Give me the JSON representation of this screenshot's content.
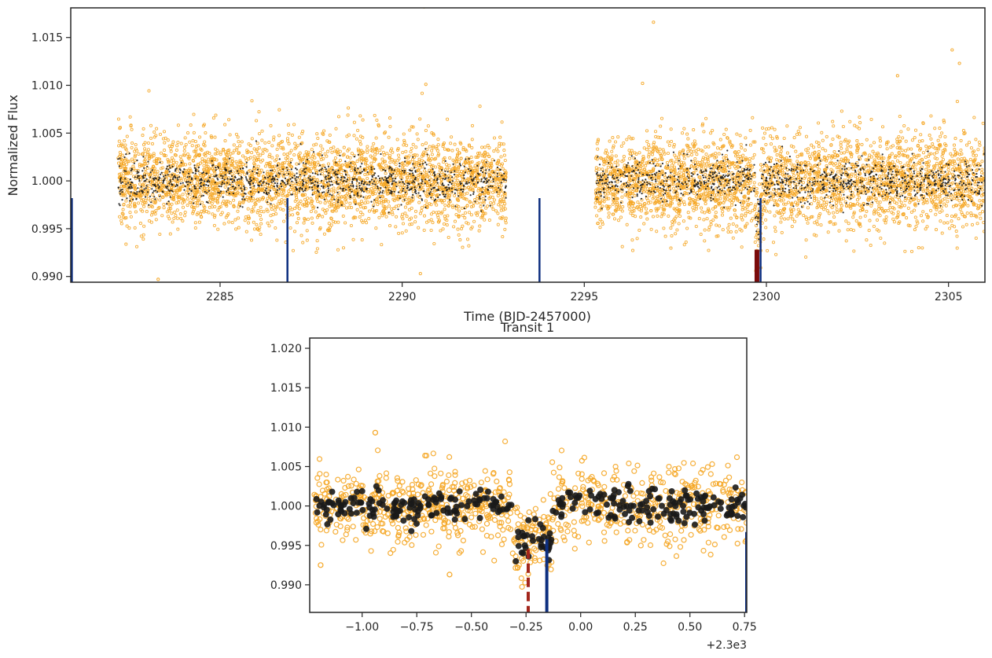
{
  "chart_data": [
    {
      "type": "scatter",
      "title": "",
      "xlabel": "Time (BJD-2457000)",
      "ylabel": "Normalized Flux",
      "xlim": [
        2280.9,
        2306.0
      ],
      "ylim": [
        0.9894,
        1.0181
      ],
      "xticks": [
        2285,
        2290,
        2295,
        2300,
        2305
      ],
      "xtick_labels": [
        "2285",
        "2290",
        "2295",
        "2300",
        "2305"
      ],
      "yticks": [
        0.99,
        0.995,
        1.0,
        1.005,
        1.01,
        1.015
      ],
      "ytick_labels": [
        "0.990",
        "0.995",
        "1.000",
        "1.005",
        "1.010",
        "1.015"
      ],
      "segments": [
        [
          2282.2,
          2292.85
        ],
        [
          2295.3,
          2306.0
        ]
      ],
      "series": [
        {
          "kind": "raw",
          "color": "#f5a623",
          "noise": 0.0024,
          "points_per_day": 280
        },
        {
          "kind": "binned",
          "color": "#1a1a1a",
          "noise": 0.0011,
          "points_per_day": 90
        }
      ],
      "transit_center": 2299.78,
      "transit_depth": 0.0055,
      "transit_halfwidth": 0.09,
      "outliers": [
        [
          2290.6,
          1.0182
        ],
        [
          2296.9,
          1.0166
        ],
        [
          2305.1,
          1.0137
        ],
        [
          2305.3,
          1.0123
        ],
        [
          2303.6,
          1.011
        ],
        [
          2290.65,
          1.0101
        ],
        [
          2296.6,
          1.0102
        ],
        [
          2283.3,
          0.9897
        ],
        [
          2290.5,
          0.9903
        ]
      ],
      "markers": [
        {
          "x": 2280.93,
          "y_top": 0.9982,
          "color": "#0d2f80"
        },
        {
          "x": 2286.85,
          "y_top": 0.9982,
          "color": "#0d2f80"
        },
        {
          "x": 2293.77,
          "y_top": 0.9982,
          "color": "#0d2f80"
        },
        {
          "x": 2299.84,
          "y_top": 0.9982,
          "color": "#0d2f80"
        },
        {
          "x": 2299.74,
          "y_top": 0.9928,
          "color": "#7a0b0b"
        }
      ]
    },
    {
      "type": "scatter",
      "title": "Transit 1",
      "xlabel": "",
      "ylabel": "",
      "offset_label": "+2.3e3",
      "xlim": [
        -1.24,
        0.76
      ],
      "ylim": [
        0.9865,
        1.0213
      ],
      "xticks": [
        -1.0,
        -0.75,
        -0.5,
        -0.25,
        0.0,
        0.25,
        0.5,
        0.75
      ],
      "xtick_labels": [
        "−1.00",
        "−0.75",
        "−0.50",
        "−0.25",
        "0.00",
        "0.25",
        "0.50",
        "0.75"
      ],
      "yticks": [
        0.99,
        0.995,
        1.0,
        1.005,
        1.01,
        1.015,
        1.02
      ],
      "ytick_labels": [
        "0.990",
        "0.995",
        "1.000",
        "1.005",
        "1.010",
        "1.015",
        "1.020"
      ],
      "series": [
        {
          "kind": "raw",
          "color": "#f5a623",
          "noise": 0.0025,
          "count": 950
        },
        {
          "kind": "binned",
          "color": "#1a1a1a",
          "noise": 0.0011,
          "count": 320
        }
      ],
      "transit_center": -0.22,
      "transit_depth": 0.0055,
      "transit_halfwidth": 0.09,
      "outliers": [
        [
          -1.19,
          0.9925
        ],
        [
          -0.6,
          0.9913
        ],
        [
          -0.94,
          1.0093
        ]
      ],
      "markers": [
        {
          "x": -0.24,
          "y_top": 0.9945,
          "color": "#a3261c",
          "dashed": true
        },
        {
          "x": -0.155,
          "y_top": 0.9958,
          "color": "#0d2f80",
          "dashed": false
        },
        {
          "x": 0.76,
          "y_top": 0.9967,
          "color": "#0d2f80",
          "dashed": false
        }
      ]
    }
  ]
}
